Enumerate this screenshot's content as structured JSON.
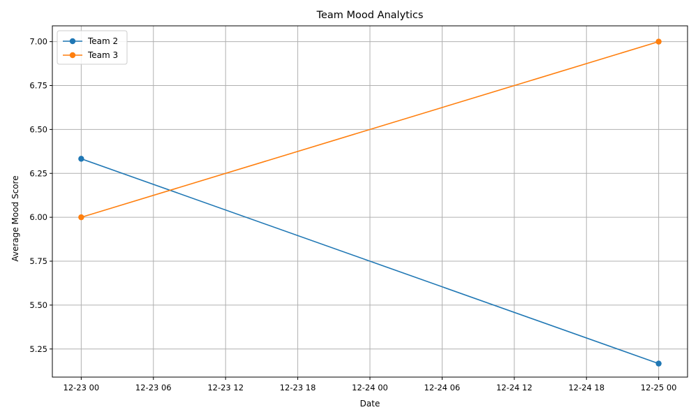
{
  "chart_data": {
    "type": "line",
    "title": "Team Mood Analytics",
    "xlabel": "Date",
    "ylabel": "Average Mood Score",
    "x": [
      "12-23 00",
      "12-25 00"
    ],
    "x_hours": [
      0,
      48
    ],
    "xlim_hours": [
      -2.4,
      50.4
    ],
    "ylim": [
      5.09,
      7.09
    ],
    "xticks": [
      {
        "hour": 0,
        "label": "12-23 00"
      },
      {
        "hour": 6,
        "label": "12-23 06"
      },
      {
        "hour": 12,
        "label": "12-23 12"
      },
      {
        "hour": 18,
        "label": "12-23 18"
      },
      {
        "hour": 24,
        "label": "12-24 00"
      },
      {
        "hour": 30,
        "label": "12-24 06"
      },
      {
        "hour": 36,
        "label": "12-24 12"
      },
      {
        "hour": 42,
        "label": "12-24 18"
      },
      {
        "hour": 48,
        "label": "12-25 00"
      }
    ],
    "yticks": [
      {
        "value": 5.25,
        "label": "5.25"
      },
      {
        "value": 5.5,
        "label": "5.50"
      },
      {
        "value": 5.75,
        "label": "5.75"
      },
      {
        "value": 6.0,
        "label": "6.00"
      },
      {
        "value": 6.25,
        "label": "6.25"
      },
      {
        "value": 6.5,
        "label": "6.50"
      },
      {
        "value": 6.75,
        "label": "6.75"
      },
      {
        "value": 7.0,
        "label": "7.00"
      }
    ],
    "grid": true,
    "legend_position": "top-left",
    "series": [
      {
        "name": "Team 2",
        "color": "#1f77b4",
        "values": [
          6.333,
          5.167
        ]
      },
      {
        "name": "Team 3",
        "color": "#ff7f0e",
        "values": [
          6.0,
          7.0
        ]
      }
    ]
  }
}
